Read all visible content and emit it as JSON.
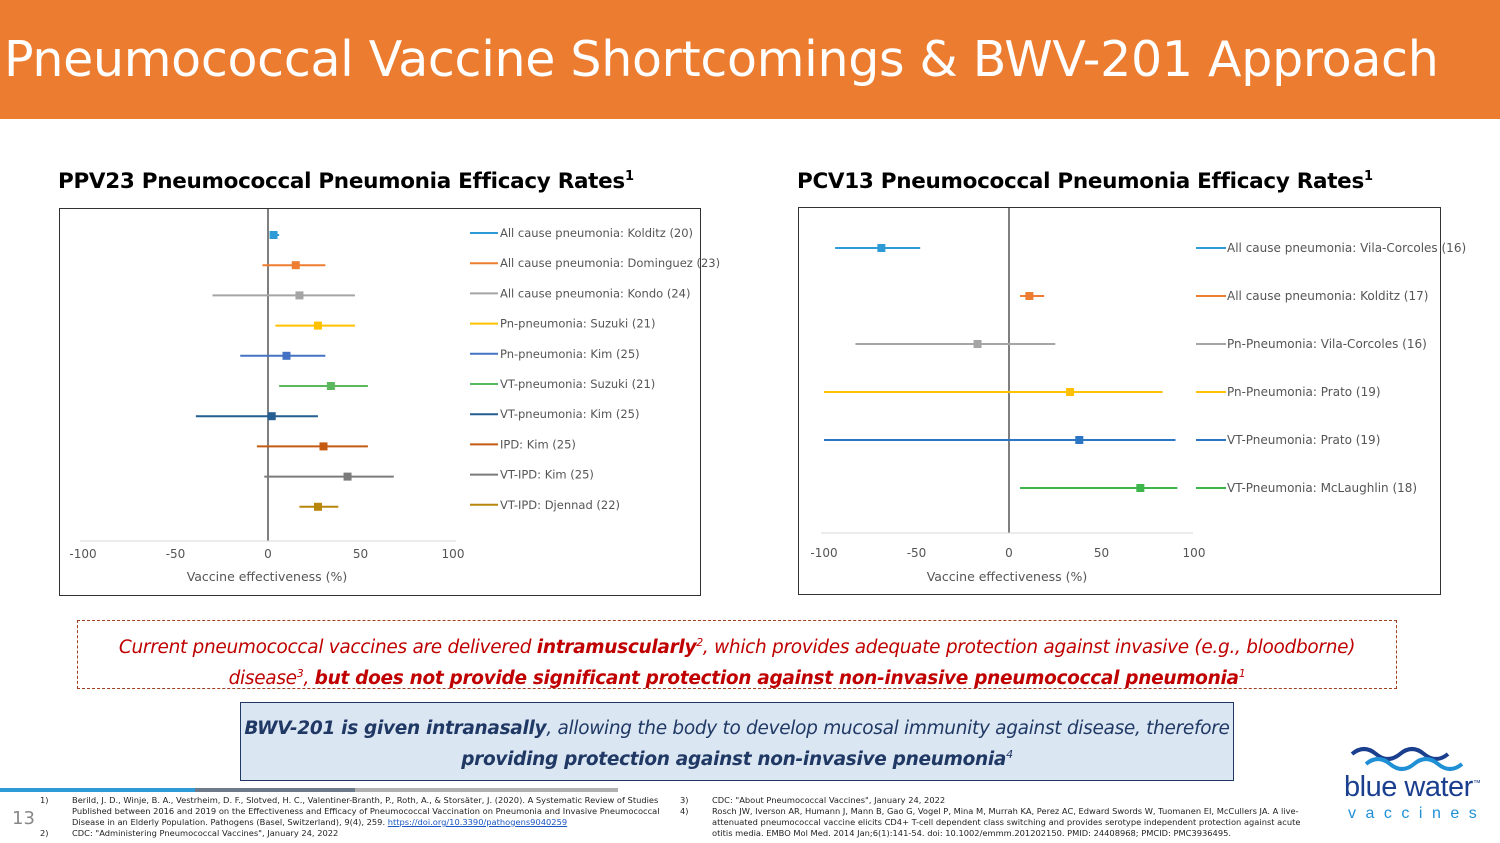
{
  "header": {
    "title": "Pneumococcal Vaccine Shortcomings & BWV-201 Approach"
  },
  "colors": {
    "header_bg": "#ec7c30",
    "alert_red": "#c00000",
    "navy": "#1f3864",
    "note_bg": "#dbe6f3"
  },
  "chart_titles": {
    "left": {
      "text": "PPV23 Pneumococcal Pneumonia Efficacy Rates",
      "sup": "1"
    },
    "right": {
      "text": "PCV13 Pneumococcal Pneumonia Efficacy Rates",
      "sup": "1"
    }
  },
  "chart_data": [
    {
      "type": "scatter",
      "title": "PPV23 Pneumococcal Pneumonia Efficacy Rates",
      "xlabel": "Vaccine effectiveness (%)",
      "xlim": [
        -100,
        100
      ],
      "xticks": [
        "-100",
        "-50",
        "0",
        "50",
        "100"
      ],
      "series": [
        {
          "name": "All cause pneumonia: Kolditz (20)",
          "color": "#2e9bd6",
          "estimate": 3,
          "ci_low": 1,
          "ci_high": 6
        },
        {
          "name": "All cause pneumonia: Dominguez (23)",
          "color": "#ed7d31",
          "estimate": 15,
          "ci_low": -3,
          "ci_high": 31
        },
        {
          "name": "All cause pneumonia: Kondo (24)",
          "color": "#a5a5a5",
          "estimate": 17,
          "ci_low": -30,
          "ci_high": 47
        },
        {
          "name": "Pn-pneumonia: Suzuki (21)",
          "color": "#ffc000",
          "estimate": 27,
          "ci_low": 4,
          "ci_high": 47
        },
        {
          "name": "Pn-pneumonia: Kim (25)",
          "color": "#4472c4",
          "estimate": 10,
          "ci_low": -15,
          "ci_high": 31
        },
        {
          "name": "VT-pneumonia: Suzuki (21)",
          "color": "#5cb85c",
          "estimate": 34,
          "ci_low": 6,
          "ci_high": 54
        },
        {
          "name": "VT-pneumonia: Kim (25)",
          "color": "#255e91",
          "estimate": 2,
          "ci_low": -39,
          "ci_high": 27
        },
        {
          "name": "IPD: Kim (25)",
          "color": "#c55a11",
          "estimate": 30,
          "ci_low": -6,
          "ci_high": 54
        },
        {
          "name": "VT-IPD: Kim (25)",
          "color": "#7b7b7b",
          "estimate": 43,
          "ci_low": -2,
          "ci_high": 68
        },
        {
          "name": "VT-IPD: Djennad (22)",
          "color": "#b8860b",
          "estimate": 27,
          "ci_low": 17,
          "ci_high": 38
        }
      ]
    },
    {
      "type": "scatter",
      "title": "PCV13 Pneumococcal Pneumonia Efficacy Rates",
      "xlabel": "Vaccine effectiveness (%)",
      "xlim": [
        -100,
        100
      ],
      "xticks": [
        "-100",
        "-50",
        "0",
        "50",
        "100"
      ],
      "series": [
        {
          "name": "All cause pneumonia: Vila-Corcoles (16)",
          "color": "#2e9bd6",
          "estimate": -69,
          "ci_low": -94,
          "ci_high": -48
        },
        {
          "name": "All cause pneumonia: Kolditz (17)",
          "color": "#ed7d31",
          "estimate": 11,
          "ci_low": 6,
          "ci_high": 19
        },
        {
          "name": "Pn-Pneumonia: Vila-Corcoles (16)",
          "color": "#a5a5a5",
          "estimate": -17,
          "ci_low": -83,
          "ci_high": 25
        },
        {
          "name": "Pn-Pneumonia: Prato (19)",
          "color": "#ffc000",
          "estimate": 33,
          "ci_low": -100,
          "ci_high": 83
        },
        {
          "name": "VT-Pneumonia: Prato (19)",
          "color": "#2a76c4",
          "estimate": 38,
          "ci_low": -100,
          "ci_high": 90
        },
        {
          "name": "VT-Pneumonia: McLaughlin (18)",
          "color": "#3cb54a",
          "estimate": 71,
          "ci_low": 6,
          "ci_high": 91
        }
      ]
    }
  ],
  "note_dashed": {
    "p1": "Current pneumococcal vaccines are delivered ",
    "b1": "intramuscularly",
    "s1": "2",
    "p2": ", which provides adequate protection against invasive (e.g., bloodborne) disease",
    "s2": "3",
    "p3": ", ",
    "b2": "but does not provide significant protection against non-invasive pneumococcal pneumonia",
    "s3": "1"
  },
  "note_box": {
    "b1": "BWV-201 is given intranasally",
    "p1": ", allowing the body to develop mucosal immunity against disease, therefore ",
    "b2": "providing protection against non-invasive pneumonia",
    "s1": "4"
  },
  "page_number": "13",
  "footnotes_left": [
    {
      "num": "1)",
      "text": "Berild, J. D., Winje, B. A., Vestrheim, D. F., Slotved, H. C., Valentiner-Branth, P., Roth, A., & Storsäter, J. (2020). A Systematic Review of Studies Published between 2016 and 2019 on the Effectiveness and Efficacy of Pneumococcal Vaccination on Pneumonia and Invasive Pneumococcal Disease in an Elderly Population. Pathogens (Basel, Switzerland), 9(4), 259. ",
      "link": "https://doi.org/10.3390/pathogens9040259"
    },
    {
      "num": "2)",
      "text": "CDC: \"Administering Pneumococcal Vaccines\", January 24, 2022",
      "link": ""
    }
  ],
  "footnotes_right": [
    {
      "num": "3)",
      "text": "CDC: \"About Pneumococcal Vaccines\", January 24, 2022",
      "link": ""
    },
    {
      "num": "4)",
      "text": "Rosch JW, Iverson AR, Humann J, Mann B, Gao G, Vogel P, Mina M, Murrah KA, Perez AC, Edward Swords W, Tuomanen EI, McCullers JA. A live-attenuated pneumococcal vaccine elicits CD4+ T-cell dependent class switching and provides serotype independent protection against acute otitis media. EMBO Mol Med. 2014 Jan;6(1):141-54. doi: 10.1002/emmm.201202150. PMID: 24408968; PMCID: PMC3936495.",
      "link": ""
    }
  ],
  "logo": {
    "line1": "blue water",
    "tm": "™",
    "line2": "vaccines"
  }
}
